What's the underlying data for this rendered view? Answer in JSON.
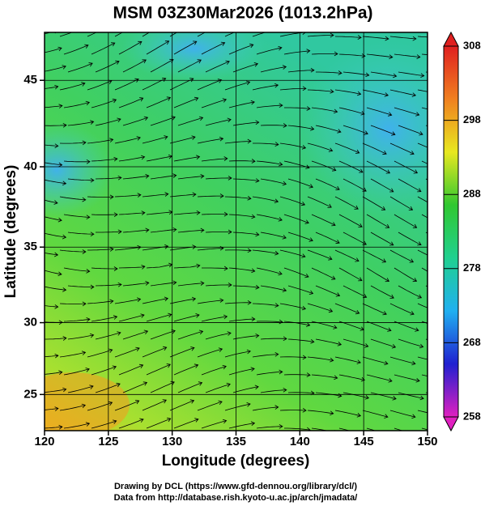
{
  "chart_data": {
    "type": "map",
    "projection": "mercator",
    "title": "MSM 03Z30Mar2026 (1013.2hPa)",
    "x_label": "Longitude (degrees)",
    "y_label": "Latitude  (degrees)",
    "xlim": [
      120,
      150
    ],
    "ylim": [
      22.4,
      47.6
    ],
    "xticks": [
      120,
      125,
      130,
      135,
      140,
      145,
      150
    ],
    "yticks": [
      25,
      30,
      35,
      40,
      45
    ],
    "grid": true,
    "colorbar": {
      "lim": [
        258,
        308
      ],
      "ticks": [
        258,
        268,
        278,
        288,
        298,
        308
      ],
      "colors": [
        "#e020c0",
        "#2020d0",
        "#20b0f0",
        "#20d090",
        "#30c830",
        "#e8e820",
        "#f08020",
        "#e02020"
      ]
    }
  },
  "footer": [
    "Drawing by DCL (https://www.gfd-dennou.org/library/dcl/)",
    "Data from http://database.rish.kyoto-u.ac.jp/arch/jmadata/"
  ]
}
